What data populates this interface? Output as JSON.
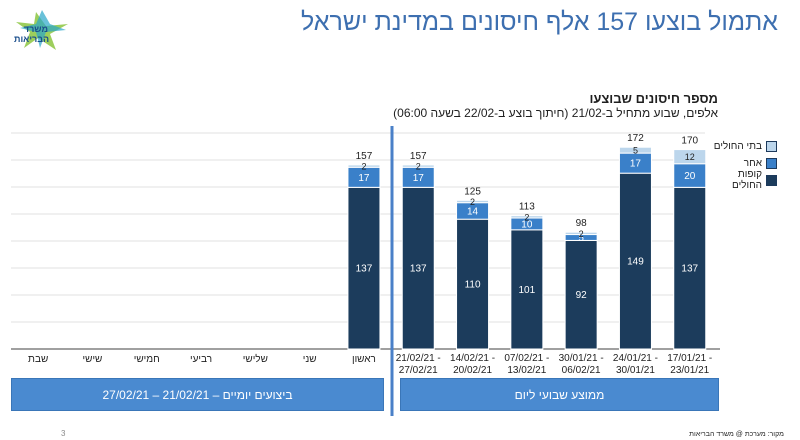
{
  "header": {
    "logo": {
      "line1": "משרד",
      "line2": "הבריאות"
    },
    "page_title": "אתמול בוצעו 157 אלף חיסונים במדינת ישראל"
  },
  "colors": {
    "kupot": "#1c3c5c",
    "acher": "#3a80c9",
    "hospitals": "#bcd6ec",
    "accent": "#3d6fb0",
    "divider": "#4a80c8",
    "band": "#4a8ad0"
  },
  "chart_data": {
    "type": "bar",
    "stacked": true,
    "title": "מספר חיסונים שבוצעו",
    "subtitle": "אלפים, שבוע מתחיל ב-21/02 (חיתוך בוצע ב-22/02 בשעה 06:00)",
    "categories": [
      "שבת",
      "שישי",
      "חמישי",
      "רביעי",
      "שלישי",
      "שני",
      "ראשון",
      "21/02/21 -\n27/02/21",
      "14/02/21 -\n20/02/21",
      "07/02/21 -\n13/02/21",
      "30/01/21 -\n06/02/21",
      "24/01/21 -\n30/01/21",
      "17/01/21 -\n23/01/21"
    ],
    "series": [
      {
        "name": "קופות החולים",
        "color": "#1c3c5c",
        "values": [
          null,
          null,
          null,
          null,
          null,
          null,
          137,
          137,
          110,
          101,
          92,
          149,
          137
        ]
      },
      {
        "name": "אחר",
        "color": "#3a80c9",
        "values": [
          null,
          null,
          null,
          null,
          null,
          null,
          17,
          17,
          14,
          10,
          5,
          17,
          20
        ]
      },
      {
        "name": "בתי החולים",
        "color": "#bcd6ec",
        "values": [
          null,
          null,
          null,
          null,
          null,
          null,
          2,
          2,
          2,
          2,
          2,
          5,
          12
        ]
      }
    ],
    "totals": [
      null,
      null,
      null,
      null,
      null,
      null,
      157,
      157,
      125,
      113,
      98,
      172,
      170
    ],
    "legend_position": "top-right",
    "grid": true
  },
  "bands": {
    "daily": "ביצועים יומיים – 21/02/21 – 27/02/21",
    "weekly": "ממוצע שבועי ליום"
  },
  "footer": {
    "page_number": "3",
    "source": "מקור: מערכת @ משרד הבריאות"
  }
}
